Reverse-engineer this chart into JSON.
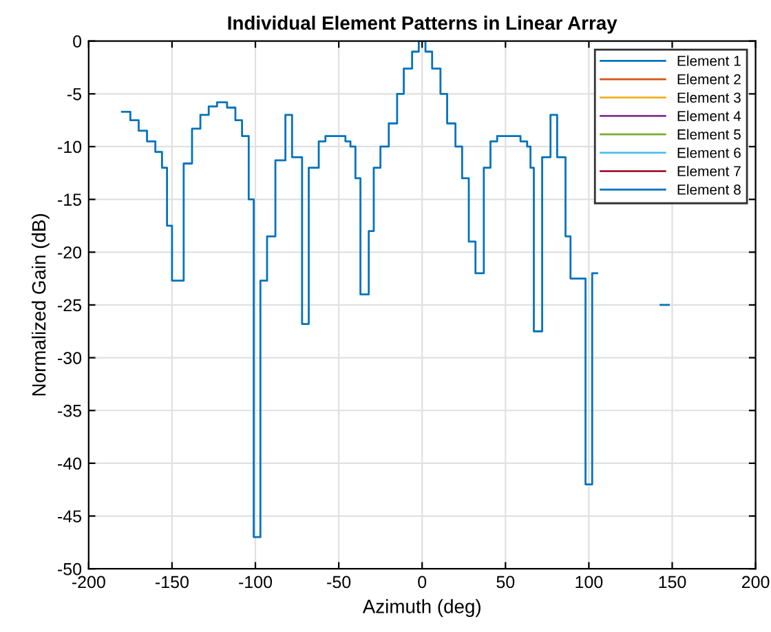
{
  "chart_data": {
    "type": "step",
    "title": "Individual Element Patterns in Linear Array",
    "xlabel": "Azimuth (deg)",
    "ylabel": "Normalized Gain (dB)",
    "x": [
      -180,
      -175,
      -170,
      -165,
      -160,
      -156,
      -153,
      -150,
      -143,
      -138,
      -133,
      -128,
      -123,
      -117,
      -112,
      -108,
      -104,
      -101,
      -97,
      -93,
      -88,
      -82,
      -78,
      -72,
      -68,
      -62,
      -58,
      -46,
      -43,
      -40,
      -37,
      -32,
      -29,
      -25,
      -20,
      -15,
      -11,
      -6,
      -2,
      2,
      6,
      11,
      15,
      20,
      24,
      28,
      32,
      37,
      41,
      45,
      59,
      63,
      65,
      67,
      72,
      77,
      81,
      86,
      89,
      98,
      102,
      105,
      143,
      148
    ],
    "series": [
      {
        "name": "Element 1",
        "color": "#0072bd",
        "values": [
          null,
          null,
          null,
          null,
          null,
          null,
          null,
          null,
          null,
          null,
          null,
          null,
          null,
          null,
          null,
          null,
          null,
          null,
          null,
          null,
          null,
          null,
          null,
          null,
          null,
          null,
          null,
          null,
          null,
          null,
          null,
          null,
          null,
          null,
          null,
          null,
          null,
          null,
          null,
          null,
          null,
          null,
          null,
          null,
          null,
          null,
          null,
          null,
          null,
          null,
          null,
          null,
          null,
          null,
          null,
          null,
          null,
          null,
          null,
          null,
          null,
          null,
          null,
          null
        ]
      },
      {
        "name": "Element 2",
        "color": "#d95319",
        "values": [
          null,
          null,
          null,
          null,
          null,
          null,
          null,
          null,
          null,
          null,
          null,
          null,
          null,
          null,
          null,
          null,
          null,
          null,
          null,
          null,
          null,
          null,
          null,
          null,
          null,
          null,
          null,
          null,
          null,
          null,
          null,
          null,
          null,
          null,
          null,
          null,
          null,
          null,
          null,
          null,
          null,
          null,
          null,
          null,
          null,
          null,
          null,
          null,
          null,
          null,
          null,
          null,
          null,
          null,
          null,
          null,
          null,
          null,
          null,
          null,
          null,
          null,
          null,
          null
        ]
      },
      {
        "name": "Element 3",
        "color": "#edb120",
        "values": [
          null,
          null,
          null,
          null,
          null,
          null,
          null,
          null,
          null,
          null,
          null,
          null,
          null,
          null,
          null,
          null,
          null,
          null,
          null,
          null,
          null,
          null,
          null,
          null,
          null,
          null,
          null,
          null,
          null,
          null,
          null,
          null,
          null,
          null,
          null,
          null,
          null,
          null,
          null,
          null,
          null,
          null,
          null,
          null,
          null,
          null,
          null,
          null,
          null,
          null,
          null,
          null,
          null,
          null,
          null,
          null,
          null,
          null,
          null,
          null,
          null,
          null,
          null,
          null
        ]
      },
      {
        "name": "Element 4",
        "color": "#7e2f8e",
        "values": [
          null,
          null,
          null,
          null,
          null,
          null,
          null,
          null,
          null,
          null,
          null,
          null,
          null,
          null,
          null,
          null,
          null,
          null,
          null,
          null,
          null,
          null,
          null,
          null,
          null,
          null,
          null,
          null,
          null,
          null,
          null,
          null,
          null,
          null,
          null,
          null,
          null,
          null,
          null,
          null,
          null,
          null,
          null,
          null,
          null,
          null,
          null,
          null,
          null,
          null,
          null,
          null,
          null,
          null,
          null,
          null,
          null,
          null,
          null,
          null,
          null,
          null,
          null,
          null
        ]
      },
      {
        "name": "Element 5",
        "color": "#77ac30",
        "values": [
          null,
          null,
          null,
          null,
          null,
          null,
          null,
          null,
          null,
          null,
          null,
          null,
          null,
          null,
          null,
          null,
          null,
          null,
          null,
          null,
          null,
          null,
          null,
          null,
          null,
          null,
          null,
          null,
          null,
          null,
          null,
          null,
          null,
          null,
          null,
          null,
          null,
          null,
          null,
          null,
          null,
          null,
          null,
          null,
          null,
          null,
          null,
          null,
          null,
          null,
          null,
          null,
          null,
          null,
          null,
          null,
          null,
          null,
          null,
          null,
          null,
          null,
          null,
          null
        ]
      },
      {
        "name": "Element 6",
        "color": "#4dbeee",
        "values": [
          null,
          null,
          null,
          null,
          null,
          null,
          null,
          null,
          null,
          null,
          null,
          null,
          null,
          null,
          null,
          null,
          null,
          null,
          null,
          null,
          null,
          null,
          null,
          null,
          null,
          null,
          null,
          null,
          null,
          null,
          null,
          null,
          null,
          null,
          null,
          null,
          null,
          null,
          null,
          null,
          null,
          null,
          null,
          null,
          null,
          null,
          null,
          null,
          null,
          null,
          null,
          null,
          null,
          null,
          null,
          null,
          null,
          null,
          null,
          null,
          null,
          null,
          null,
          null
        ]
      },
      {
        "name": "Element 7",
        "color": "#a2142f",
        "values": [
          null,
          null,
          null,
          null,
          null,
          null,
          null,
          null,
          null,
          null,
          null,
          null,
          null,
          null,
          null,
          null,
          null,
          null,
          null,
          null,
          null,
          null,
          null,
          null,
          null,
          null,
          null,
          null,
          null,
          null,
          null,
          null,
          null,
          null,
          null,
          null,
          null,
          null,
          null,
          null,
          null,
          null,
          null,
          null,
          null,
          null,
          null,
          null,
          null,
          null,
          null,
          null,
          null,
          null,
          null,
          null,
          null,
          null,
          null,
          null,
          null,
          null,
          null,
          null
        ]
      },
      {
        "name": "Element 8",
        "color": "#0072bd",
        "values": [
          -6.7,
          -7.5,
          -8.5,
          -9.5,
          -10.5,
          -12,
          -17.5,
          -22.7,
          -11.6,
          -8.3,
          -7,
          -6.2,
          -5.8,
          -6.3,
          -7.5,
          -9,
          -15,
          -47,
          -22.7,
          -18.5,
          -11.3,
          -7,
          -11,
          -26.8,
          -12,
          -9.5,
          -9,
          -9.5,
          -10,
          -13,
          -24,
          -18,
          -12,
          -10,
          -7.8,
          -5,
          -2.6,
          -1,
          0,
          -1,
          -2.6,
          -5,
          -7.8,
          -10,
          -13,
          -19,
          -22,
          -12,
          -9.5,
          -9,
          -9.5,
          -10,
          -12,
          -27.5,
          -11,
          -7,
          -11,
          -18.5,
          -22.5,
          -42,
          -22,
          null,
          -25,
          -25
        ]
      }
    ],
    "xlim": [
      -200,
      200
    ],
    "xticks": [
      -200,
      -150,
      -100,
      -50,
      0,
      50,
      100,
      150,
      200
    ],
    "ylim": [
      -50,
      0
    ],
    "yticks": [
      -50,
      -45,
      -40,
      -35,
      -30,
      -25,
      -20,
      -15,
      -10,
      -5,
      0
    ],
    "grid": true,
    "legend": "top right"
  }
}
